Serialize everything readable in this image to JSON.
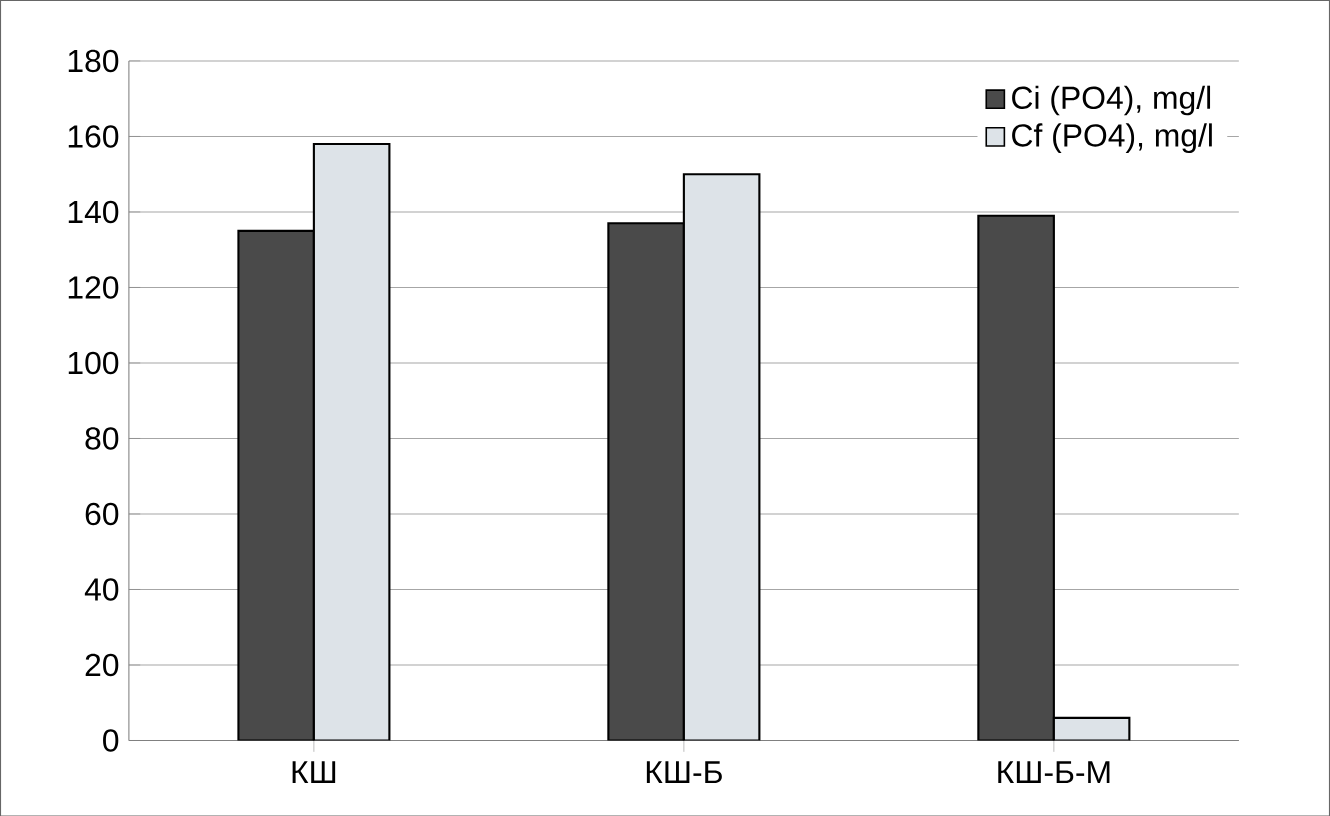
{
  "chart_data": {
    "type": "bar",
    "categories": [
      "КШ",
      "КШ-Б",
      "КШ-Б-М"
    ],
    "series": [
      {
        "name": "Ci (PO4), mg/l",
        "color": "#4a4a4a",
        "values": [
          135,
          137,
          139
        ]
      },
      {
        "name": "Cf (PO4), mg/l",
        "color": "#dde3e8",
        "values": [
          158,
          150,
          6
        ]
      }
    ],
    "ylim": [
      0,
      180
    ],
    "yticks": [
      0,
      20,
      40,
      60,
      80,
      100,
      120,
      140,
      160,
      180
    ],
    "grid": "y",
    "legend": "top right"
  }
}
